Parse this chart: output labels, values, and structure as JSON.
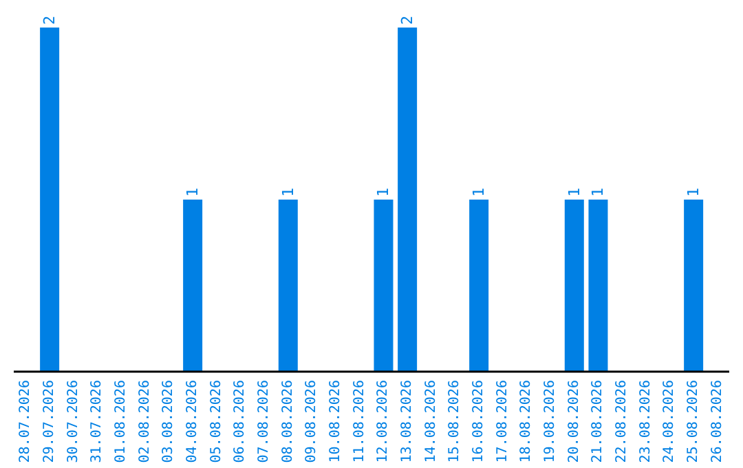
{
  "chart_data": {
    "type": "bar",
    "categories": [
      "28.07.2026",
      "29.07.2026",
      "30.07.2026",
      "31.07.2026",
      "01.08.2026",
      "02.08.2026",
      "03.08.2026",
      "04.08.2026",
      "05.08.2026",
      "06.08.2026",
      "07.08.2026",
      "08.08.2026",
      "09.08.2026",
      "10.08.2026",
      "11.08.2026",
      "12.08.2026",
      "13.08.2026",
      "14.08.2026",
      "15.08.2026",
      "16.08.2026",
      "17.08.2026",
      "18.08.2026",
      "19.08.2026",
      "20.08.2026",
      "21.08.2026",
      "22.08.2026",
      "23.08.2026",
      "24.08.2026",
      "25.08.2026",
      "26.08.2026"
    ],
    "values": [
      0,
      2,
      0,
      0,
      0,
      0,
      0,
      1,
      0,
      0,
      0,
      1,
      0,
      0,
      0,
      1,
      2,
      0,
      0,
      1,
      0,
      0,
      0,
      1,
      1,
      0,
      0,
      0,
      1,
      0
    ],
    "value_labels": [
      null,
      "2",
      null,
      null,
      null,
      null,
      null,
      "1",
      null,
      null,
      null,
      "1",
      null,
      null,
      null,
      "1",
      "2",
      null,
      null,
      "1",
      null,
      null,
      null,
      "1",
      "1",
      null,
      null,
      null,
      "1",
      null
    ],
    "color": "#0080e4"
  }
}
